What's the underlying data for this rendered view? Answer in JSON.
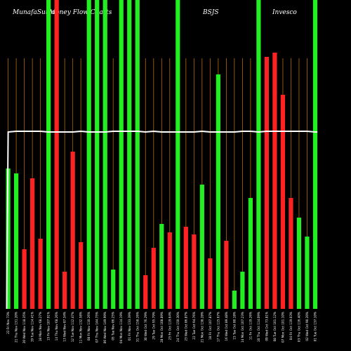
{
  "header": {
    "site": "MunafaSutra",
    "chart_name": "Money Flow  Charts",
    "symbol": "BSJS",
    "company": "Invesco"
  },
  "chart_data": {
    "type": "bar",
    "title": "MunafaSutra Money Flow Charts BSJS Invesco",
    "colors": {
      "up": "#22ee22",
      "down": "#ff2222",
      "line": "#ffffff",
      "grid": "#b86a00",
      "background": "#000000"
    },
    "bars": [
      {
        "x": "22 Fri Nov 73%",
        "value": 200,
        "color": "up"
      },
      {
        "x": "21 Thu Nov 131.20%",
        "value": 193,
        "color": "up"
      },
      {
        "x": "20 Wed Nov 118.35%",
        "value": 85,
        "color": "down"
      },
      {
        "x": "19 Tue Nov 114.41%",
        "value": 186,
        "color": "down"
      },
      {
        "x": "18 Mon Nov 68.27%",
        "value": 100,
        "color": "down"
      },
      {
        "x": "15 Fri Nov 107.91%",
        "value": 440,
        "color": "up"
      },
      {
        "x": "14 Thu Nov 68.26%",
        "value": 440,
        "color": "down"
      },
      {
        "x": "13 Wed Nov 87.34%",
        "value": 53,
        "color": "down"
      },
      {
        "x": "12 Tue Nov 112.47%",
        "value": 224,
        "color": "down"
      },
      {
        "x": "11 Mon Nov 132.58%",
        "value": 95,
        "color": "down"
      },
      {
        "x": "08 Fri Nov 110.26%",
        "value": 440,
        "color": "up"
      },
      {
        "x": "07 Thu Nov 144.75%",
        "value": 440,
        "color": "up"
      },
      {
        "x": "06 Wed Nov 149.99%",
        "value": 440,
        "color": "up"
      },
      {
        "x": "05 Tue Nov 86.25%",
        "value": 56,
        "color": "up"
      },
      {
        "x": "04 Mon Nov 114.19%",
        "value": 440,
        "color": "up"
      },
      {
        "x": "01 Fri Nov 133.39%",
        "value": 440,
        "color": "up"
      },
      {
        "x": "31 Thu Oct 158.26%",
        "value": 440,
        "color": "up"
      },
      {
        "x": "30 Wed Oct 76.29%",
        "value": 48,
        "color": "down"
      },
      {
        "x": "29 Tue Oct 95.79%",
        "value": 87,
        "color": "down"
      },
      {
        "x": "28 Mon Oct 108.89%",
        "value": 121,
        "color": "up"
      },
      {
        "x": "25 Fri Oct 119.64%",
        "value": 109,
        "color": "down"
      },
      {
        "x": "24 Thu Oct 150.30%",
        "value": 440,
        "color": "up"
      },
      {
        "x": "23 Wed Oct 86.87%",
        "value": 117,
        "color": "down"
      },
      {
        "x": "22 Tue Oct 94.76%",
        "value": 106,
        "color": "down"
      },
      {
        "x": "21 Mon Oct 138.28%",
        "value": 177,
        "color": "up"
      },
      {
        "x": "18 Fri Oct 107.87%",
        "value": 72,
        "color": "down"
      },
      {
        "x": "17 Thu Oct 115.67%",
        "value": 334,
        "color": "up"
      },
      {
        "x": "16 Wed Oct 89.48%",
        "value": 97,
        "color": "down"
      },
      {
        "x": "15 Tue Oct 80.18%",
        "value": 26,
        "color": "up"
      },
      {
        "x": "14 Mon Oct 107.23%",
        "value": 53,
        "color": "up"
      },
      {
        "x": "11 Fri Oct 119.26%",
        "value": 158,
        "color": "up"
      },
      {
        "x": "10 Thu Oct 114.09%",
        "value": 440,
        "color": "up"
      },
      {
        "x": "09 Wed Oct 73.81%",
        "value": 359,
        "color": "down"
      },
      {
        "x": "08 Tue Oct 101.12%",
        "value": 365,
        "color": "down"
      },
      {
        "x": "07 Mon Oct 101.10%",
        "value": 305,
        "color": "down"
      },
      {
        "x": "04 Fri Oct 119.03%",
        "value": 158,
        "color": "down"
      },
      {
        "x": "03 Thu Oct 116.40%",
        "value": 130,
        "color": "up"
      },
      {
        "x": "02 Wed Oct 90.20%",
        "value": 103,
        "color": "up"
      },
      {
        "x": "01 Tue Oct 137.10%",
        "value": 440,
        "color": "up"
      }
    ],
    "line": [
      252,
      253,
      253,
      253,
      253,
      252,
      252,
      252,
      252,
      253,
      252,
      252,
      252,
      253,
      253,
      253,
      253,
      252,
      253,
      252,
      252,
      252,
      252,
      252,
      253,
      252,
      252,
      252,
      252,
      253,
      253,
      252,
      253,
      253,
      253,
      253,
      253,
      253,
      252
    ],
    "line_start": 0,
    "ylim": [
      0,
      440
    ]
  }
}
